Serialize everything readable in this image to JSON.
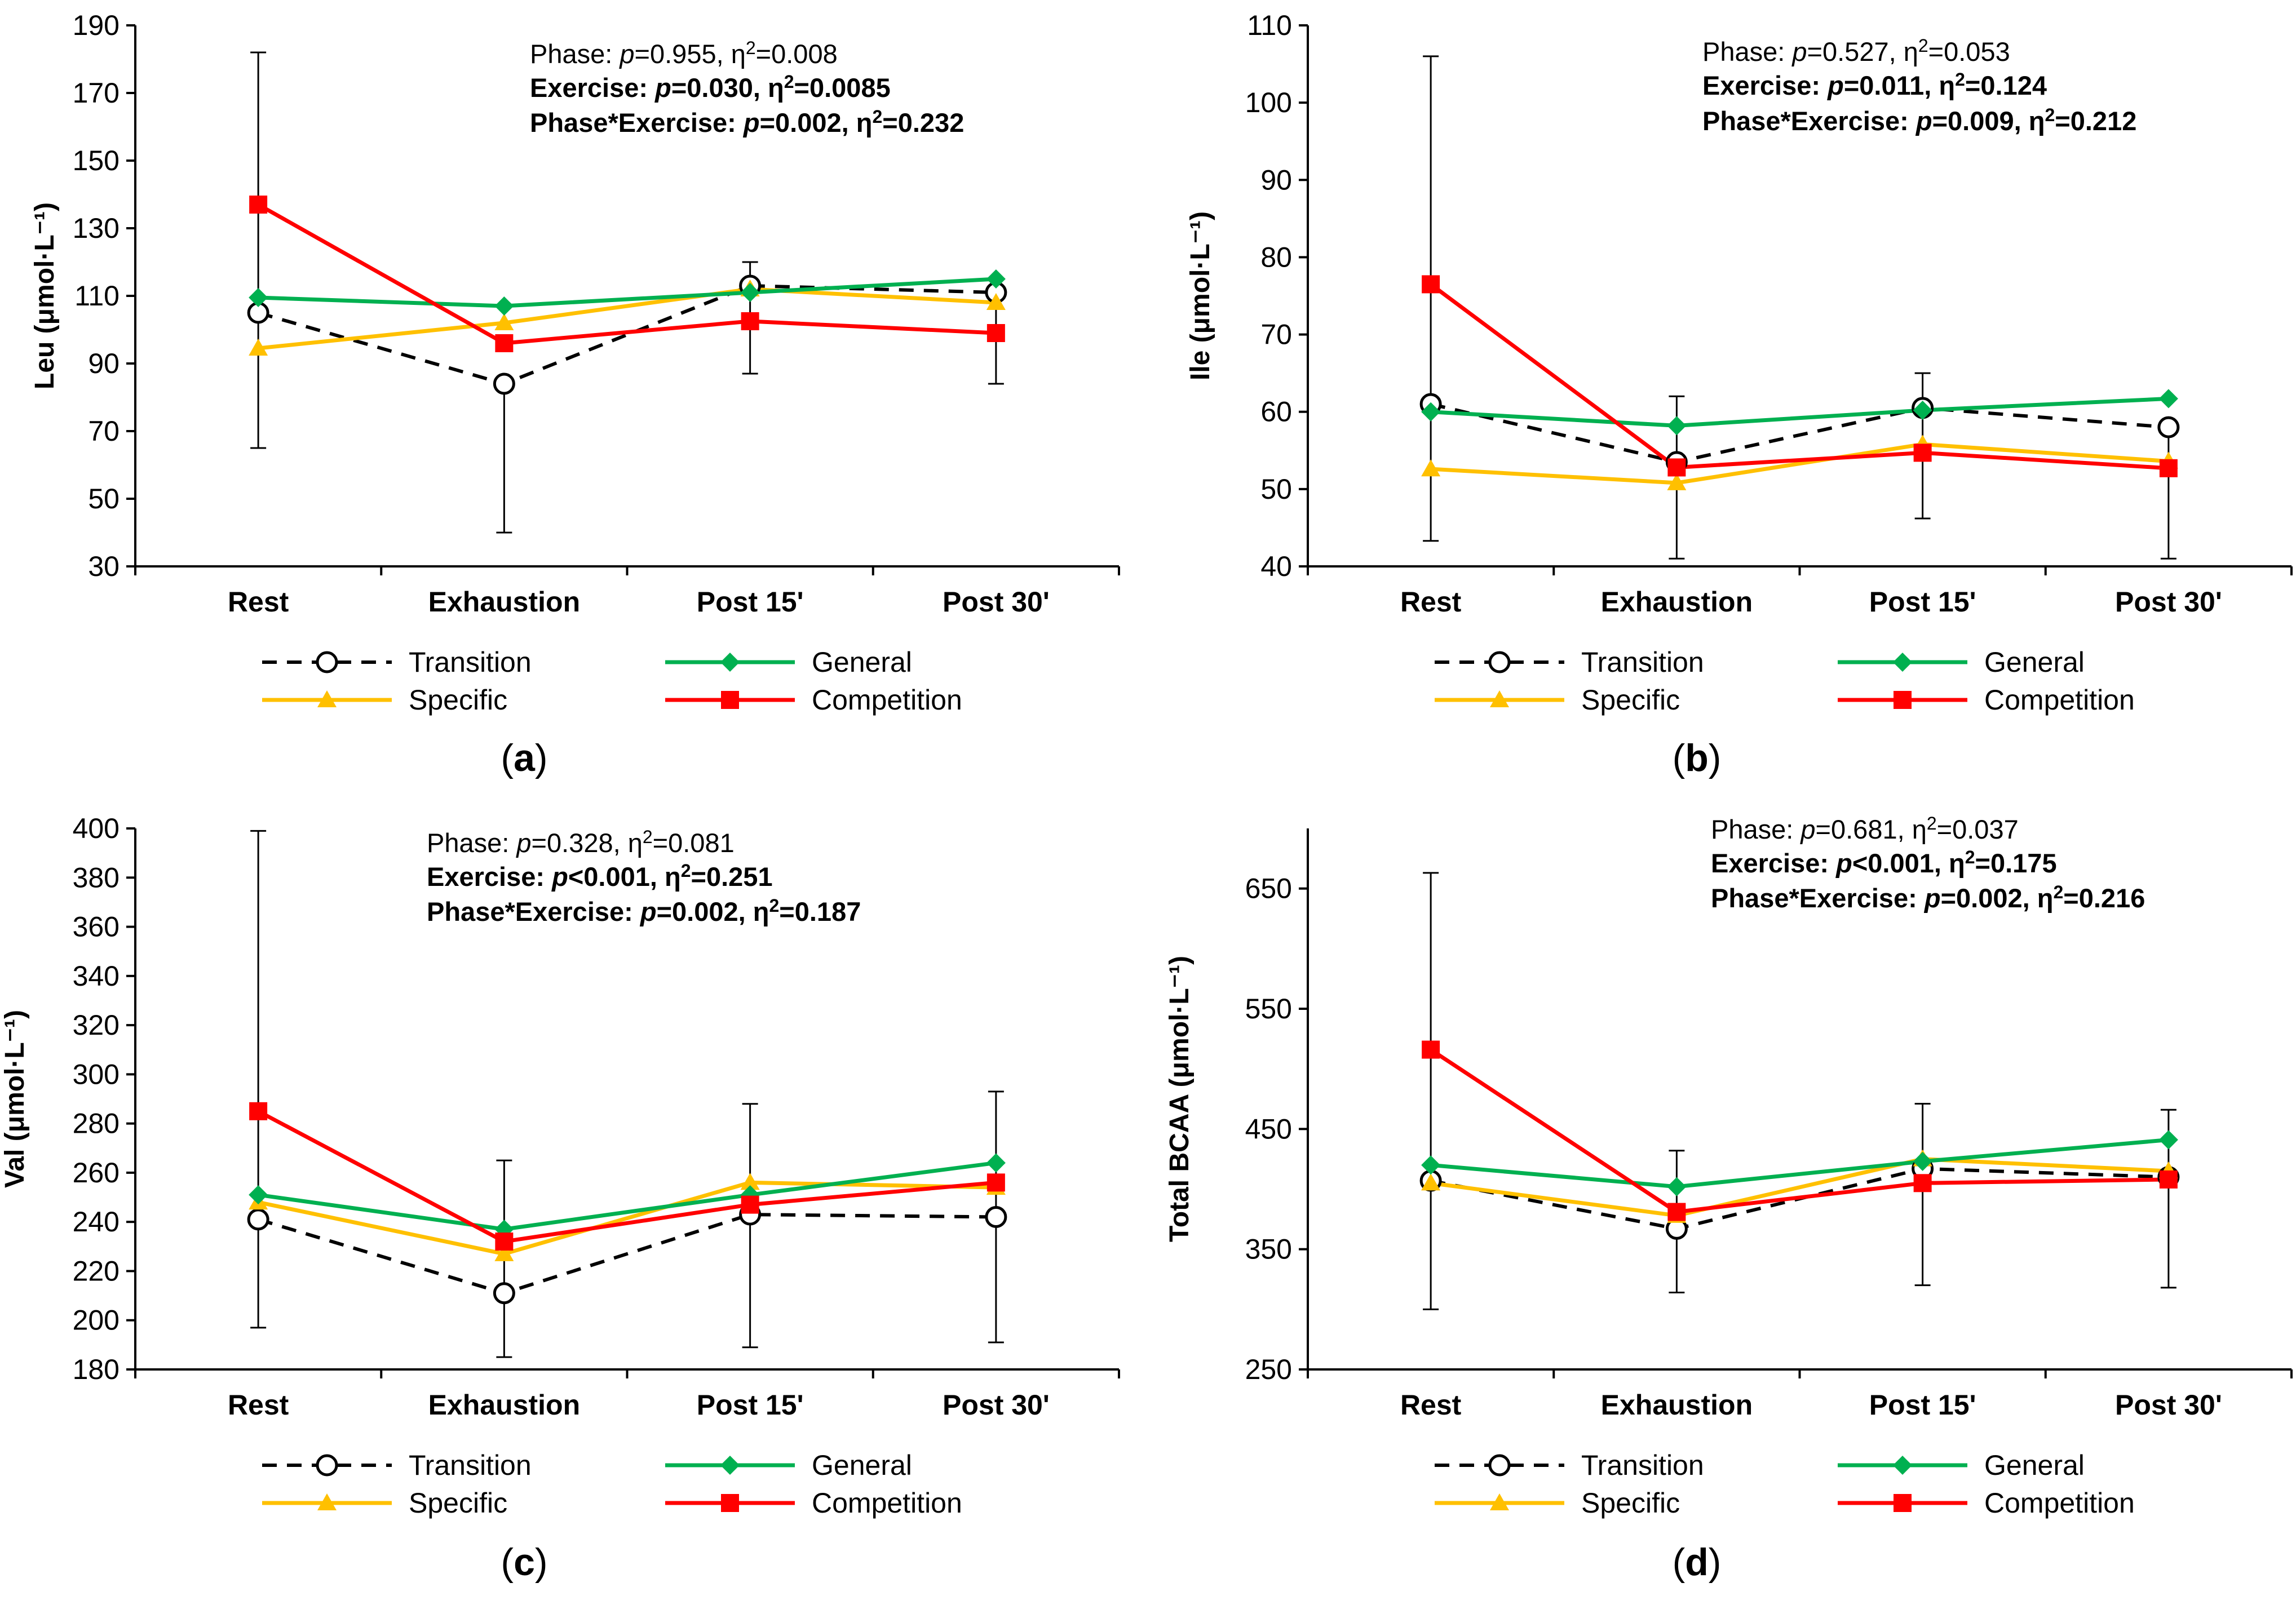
{
  "colors": {
    "Transition": "#000000",
    "General": "#00B050",
    "Specific": "#FFC000",
    "Competition": "#FF0000"
  },
  "chart_data": [
    {
      "type": "line",
      "panel_label": "(a)",
      "ylabel": "Leu (μmol·L⁻¹)",
      "ylim": [
        30,
        190
      ],
      "yticks": [
        30,
        50,
        70,
        90,
        110,
        130,
        150,
        170,
        190
      ],
      "categories": [
        "Rest",
        "Exhaustion",
        "Post 15'",
        "Post 30'"
      ],
      "series": [
        {
          "name": "Transition",
          "values": [
            105,
            84,
            113,
            111
          ]
        },
        {
          "name": "General",
          "values": [
            109.5,
            107,
            111,
            115
          ]
        },
        {
          "name": "Specific",
          "values": [
            94.5,
            102,
            112,
            108
          ]
        },
        {
          "name": "Competition",
          "values": [
            137,
            96,
            102.5,
            99
          ]
        }
      ],
      "error_bars": [
        {
          "category": "Rest",
          "low": 65,
          "high": 182
        },
        {
          "category": "Exhaustion",
          "low": 40,
          "high": 84
        },
        {
          "category": "Post 15'",
          "low": 87,
          "high": 120
        },
        {
          "category": "Post 30'",
          "low": 84,
          "high": 111
        }
      ],
      "annotations": [
        {
          "lead": "Phase: ",
          "p_label": "p",
          "rest": "=0.955, η",
          "sup": "2",
          "tail": "=0.008",
          "bold": false
        },
        {
          "lead": "Exercise: ",
          "p_label": "p",
          "rest": "=0.030, η",
          "sup": "2",
          "tail": "=0.0085",
          "bold": true
        },
        {
          "lead": "Phase*Exercise: ",
          "p_label": "p",
          "rest": "=0.002, η",
          "sup": "2",
          "tail": "=0.232",
          "bold": true
        }
      ]
    },
    {
      "type": "line",
      "panel_label": "(b)",
      "ylabel": "Ile (μmol·L⁻¹)",
      "ylim": [
        40,
        110
      ],
      "yticks": [
        40,
        50,
        60,
        70,
        80,
        90,
        100,
        110
      ],
      "categories": [
        "Rest",
        "Exhaustion",
        "Post 15'",
        "Post 30'"
      ],
      "series": [
        {
          "name": "Transition",
          "values": [
            61,
            53.5,
            60.5,
            58
          ]
        },
        {
          "name": "General",
          "values": [
            60,
            58.2,
            60.2,
            61.7
          ]
        },
        {
          "name": "Specific",
          "values": [
            52.6,
            50.8,
            55.8,
            53.6
          ]
        },
        {
          "name": "Competition",
          "values": [
            76.5,
            52.8,
            54.7,
            52.7
          ]
        }
      ],
      "error_bars": [
        {
          "category": "Rest",
          "low": 43.3,
          "high": 106
        },
        {
          "category": "Exhaustion",
          "low": 41,
          "high": 62
        },
        {
          "category": "Post 15'",
          "low": 46.2,
          "high": 65
        },
        {
          "category": "Post 30'",
          "low": 41,
          "high": 58
        }
      ],
      "annotations": [
        {
          "lead": "Phase: ",
          "p_label": "p",
          "rest": "=0.527, η",
          "sup": "2",
          "tail": "=0.053",
          "bold": false
        },
        {
          "lead": "Exercise: ",
          "p_label": "p",
          "rest": "=0.011, η",
          "sup": "2",
          "tail": "=0.124",
          "bold": true
        },
        {
          "lead": "Phase*Exercise: ",
          "p_label": "p",
          "rest": "=0.009, η",
          "sup": "2",
          "tail": "=0.212",
          "bold": true
        }
      ]
    },
    {
      "type": "line",
      "panel_label": "(c)",
      "ylabel": "Val (μmol·L⁻¹)",
      "ylim": [
        180,
        400
      ],
      "yticks": [
        180,
        200,
        220,
        240,
        260,
        280,
        300,
        320,
        340,
        360,
        380,
        400
      ],
      "categories": [
        "Rest",
        "Exhaustion",
        "Post 15'",
        "Post 30'"
      ],
      "series": [
        {
          "name": "Transition",
          "values": [
            241,
            211,
            243,
            242
          ]
        },
        {
          "name": "General",
          "values": [
            251,
            237,
            251,
            264
          ]
        },
        {
          "name": "Specific",
          "values": [
            248,
            227,
            256,
            254
          ]
        },
        {
          "name": "Competition",
          "values": [
            285,
            232,
            247,
            256
          ]
        }
      ],
      "error_bars": [
        {
          "category": "Rest",
          "low": 197,
          "high": 399
        },
        {
          "category": "Exhaustion",
          "low": 185,
          "high": 265
        },
        {
          "category": "Post 15'",
          "low": 189,
          "high": 288
        },
        {
          "category": "Post 30'",
          "low": 191,
          "high": 293
        }
      ],
      "annotations": [
        {
          "lead": "Phase: ",
          "p_label": "p",
          "rest": "=0.328, η",
          "sup": "2",
          "tail": "=0.081",
          "bold": false
        },
        {
          "lead": "Exercise: ",
          "p_label": "p",
          "rest": "<0.001, η",
          "sup": "2",
          "tail": "=0.251",
          "bold": true
        },
        {
          "lead": "Phase*Exercise: ",
          "p_label": "p",
          "rest": "=0.002, η",
          "sup": "2",
          "tail": "=0.187",
          "bold": true
        }
      ]
    },
    {
      "type": "line",
      "panel_label": "(d)",
      "ylabel": "Total BCAA (μmol·L⁻¹)",
      "ylim": [
        250,
        700
      ],
      "yticks": [
        250,
        350,
        450,
        550,
        650
      ],
      "categories": [
        "Rest",
        "Exhaustion",
        "Post 15'",
        "Post 30'"
      ],
      "series": [
        {
          "name": "Transition",
          "values": [
            407,
            367,
            417,
            410
          ]
        },
        {
          "name": "General",
          "values": [
            420,
            402,
            423,
            441
          ]
        },
        {
          "name": "Specific",
          "values": [
            405,
            378,
            425,
            415
          ]
        },
        {
          "name": "Competition",
          "values": [
            516,
            381,
            405,
            408
          ]
        }
      ],
      "error_bars": [
        {
          "category": "Rest",
          "low": 300,
          "high": 663
        },
        {
          "category": "Exhaustion",
          "low": 314,
          "high": 432
        },
        {
          "category": "Post 15'",
          "low": 320,
          "high": 471
        },
        {
          "category": "Post 30'",
          "low": 318,
          "high": 466
        }
      ],
      "annotations": [
        {
          "lead": "Phase: ",
          "p_label": "p",
          "rest": "=0.681, η",
          "sup": "2",
          "tail": "=0.037",
          "bold": false
        },
        {
          "lead": "Exercise: ",
          "p_label": "p",
          "rest": "<0.001, η",
          "sup": "2",
          "tail": "=0.175",
          "bold": true
        },
        {
          "lead": "Phase*Exercise: ",
          "p_label": "p",
          "rest": "=0.002, η",
          "sup": "2",
          "tail": "=0.216",
          "bold": true
        }
      ]
    }
  ]
}
